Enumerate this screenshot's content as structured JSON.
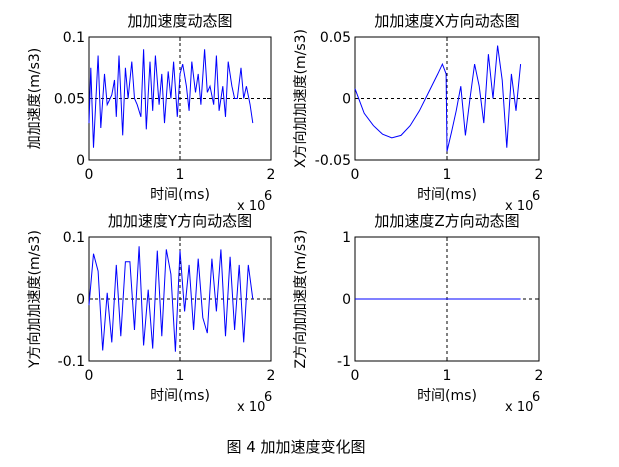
{
  "figure": {
    "caption": "图 4  加加速度变化图"
  },
  "colors": {
    "series": "#0000ff",
    "axes": "#000000"
  },
  "chart_data": [
    {
      "id": "p1",
      "type": "line",
      "title": "加加速度动态图",
      "xlabel": "时间(ms)",
      "ylabel": "加加速度(m/s3)",
      "x_exponent_base": "x 10",
      "x_exponent_power": "6",
      "xlim": [
        0,
        2
      ],
      "ylim": [
        0,
        0.1
      ],
      "xticks": [
        0,
        1,
        2
      ],
      "yticks": [
        0,
        0.05,
        0.1
      ],
      "ytick_labels": [
        "0",
        "0.05",
        "0.1"
      ],
      "guides": {
        "x": 1,
        "y": 0.05
      },
      "x": [
        0,
        0.02,
        0.05,
        0.1,
        0.13,
        0.17,
        0.2,
        0.22,
        0.25,
        0.28,
        0.3,
        0.33,
        0.37,
        0.4,
        0.43,
        0.47,
        0.5,
        0.53,
        0.57,
        0.6,
        0.63,
        0.67,
        0.7,
        0.73,
        0.77,
        0.8,
        0.83,
        0.87,
        0.9,
        0.93,
        0.97,
        1.0,
        1.03,
        1.07,
        1.1,
        1.13,
        1.17,
        1.2,
        1.23,
        1.27,
        1.3,
        1.33,
        1.37,
        1.4,
        1.43,
        1.47,
        1.5,
        1.53,
        1.57,
        1.6,
        1.63,
        1.67,
        1.7,
        1.73,
        1.77,
        1.8
      ],
      "series": [
        {
          "values": [
            0.03,
            0.075,
            0.01,
            0.085,
            0.026,
            0.07,
            0.045,
            0.048,
            0.053,
            0.065,
            0.035,
            0.085,
            0.02,
            0.075,
            0.05,
            0.08,
            0.05,
            0.045,
            0.035,
            0.09,
            0.025,
            0.08,
            0.04,
            0.085,
            0.045,
            0.07,
            0.03,
            0.072,
            0.05,
            0.08,
            0.035,
            0.07,
            0.078,
            0.06,
            0.04,
            0.08,
            0.055,
            0.07,
            0.045,
            0.09,
            0.055,
            0.06,
            0.045,
            0.085,
            0.04,
            0.06,
            0.035,
            0.08,
            0.06,
            0.05,
            0.05,
            0.075,
            0.05,
            0.06,
            0.045,
            0.03
          ]
        }
      ]
    },
    {
      "id": "p2",
      "type": "line",
      "title": "加加速度X方向动态图",
      "xlabel": "时间(ms)",
      "ylabel": "X方向加加速度(m/s3)",
      "x_exponent_base": "x 10",
      "x_exponent_power": "6",
      "xlim": [
        0,
        2
      ],
      "ylim": [
        -0.05,
        0.05
      ],
      "xticks": [
        0,
        1,
        2
      ],
      "yticks": [
        -0.05,
        0,
        0.05
      ],
      "ytick_labels": [
        "-0.05",
        "0",
        "0.05"
      ],
      "guides": {
        "x": 1,
        "y": 0
      },
      "x": [
        0,
        0.1,
        0.2,
        0.3,
        0.4,
        0.5,
        0.6,
        0.7,
        0.8,
        0.9,
        0.95,
        0.99,
        1.0,
        1.05,
        1.1,
        1.15,
        1.2,
        1.25,
        1.3,
        1.35,
        1.4,
        1.45,
        1.5,
        1.55,
        1.6,
        1.65,
        1.7,
        1.75,
        1.8
      ],
      "series": [
        {
          "values": [
            0.008,
            -0.012,
            -0.022,
            -0.029,
            -0.032,
            -0.03,
            -0.022,
            -0.01,
            0.005,
            0.02,
            0.028,
            0.02,
            -0.043,
            -0.027,
            -0.01,
            0.01,
            -0.03,
            0.0,
            0.028,
            0.01,
            -0.02,
            0.036,
            0.0,
            0.043,
            0.015,
            -0.04,
            0.02,
            -0.01,
            0.028
          ]
        }
      ]
    },
    {
      "id": "p3",
      "type": "line",
      "title": "加加速度Y方向动态图",
      "xlabel": "时间(ms)",
      "ylabel": "Y方向加加速度(m/s3)",
      "x_exponent_base": "x 10",
      "x_exponent_power": "6",
      "xlim": [
        0,
        2
      ],
      "ylim": [
        -0.1,
        0.1
      ],
      "xticks": [
        0,
        1,
        2
      ],
      "yticks": [
        -0.1,
        0,
        0.1
      ],
      "ytick_labels": [
        "-0.1",
        "0",
        "0.1"
      ],
      "guides": {
        "x": 1,
        "y": 0
      },
      "x": [
        0,
        0.05,
        0.1,
        0.15,
        0.2,
        0.25,
        0.3,
        0.35,
        0.4,
        0.45,
        0.5,
        0.55,
        0.6,
        0.65,
        0.7,
        0.75,
        0.8,
        0.85,
        0.9,
        0.95,
        1.0,
        1.05,
        1.1,
        1.15,
        1.2,
        1.25,
        1.3,
        1.35,
        1.4,
        1.45,
        1.5,
        1.55,
        1.6,
        1.65,
        1.7,
        1.75,
        1.8
      ],
      "series": [
        {
          "values": [
            -0.01,
            0.073,
            0.045,
            -0.083,
            0.01,
            -0.07,
            0.055,
            -0.06,
            0.06,
            0.06,
            -0.05,
            0.085,
            -0.075,
            0.015,
            -0.08,
            0.078,
            -0.06,
            0.08,
            0.04,
            -0.085,
            0.078,
            -0.02,
            0.055,
            -0.05,
            0.065,
            -0.03,
            -0.055,
            0.065,
            -0.02,
            0.08,
            -0.06,
            0.068,
            -0.05,
            0.055,
            -0.07,
            0.055,
            0.0
          ]
        }
      ]
    },
    {
      "id": "p4",
      "type": "line",
      "title": "加加速度Z方向动态图",
      "xlabel": "时间(ms)",
      "ylabel": "Z方向加加速度(m/s3)",
      "x_exponent_base": "x 10",
      "x_exponent_power": "6",
      "xlim": [
        0,
        2
      ],
      "ylim": [
        -1,
        1
      ],
      "xticks": [
        0,
        1,
        2
      ],
      "yticks": [
        -1,
        0,
        1
      ],
      "ytick_labels": [
        "-1",
        "0",
        "1"
      ],
      "guides": {
        "x": 1,
        "y": 0
      },
      "x": [
        0,
        1.8
      ],
      "series": [
        {
          "values": [
            0,
            0
          ]
        }
      ]
    }
  ]
}
